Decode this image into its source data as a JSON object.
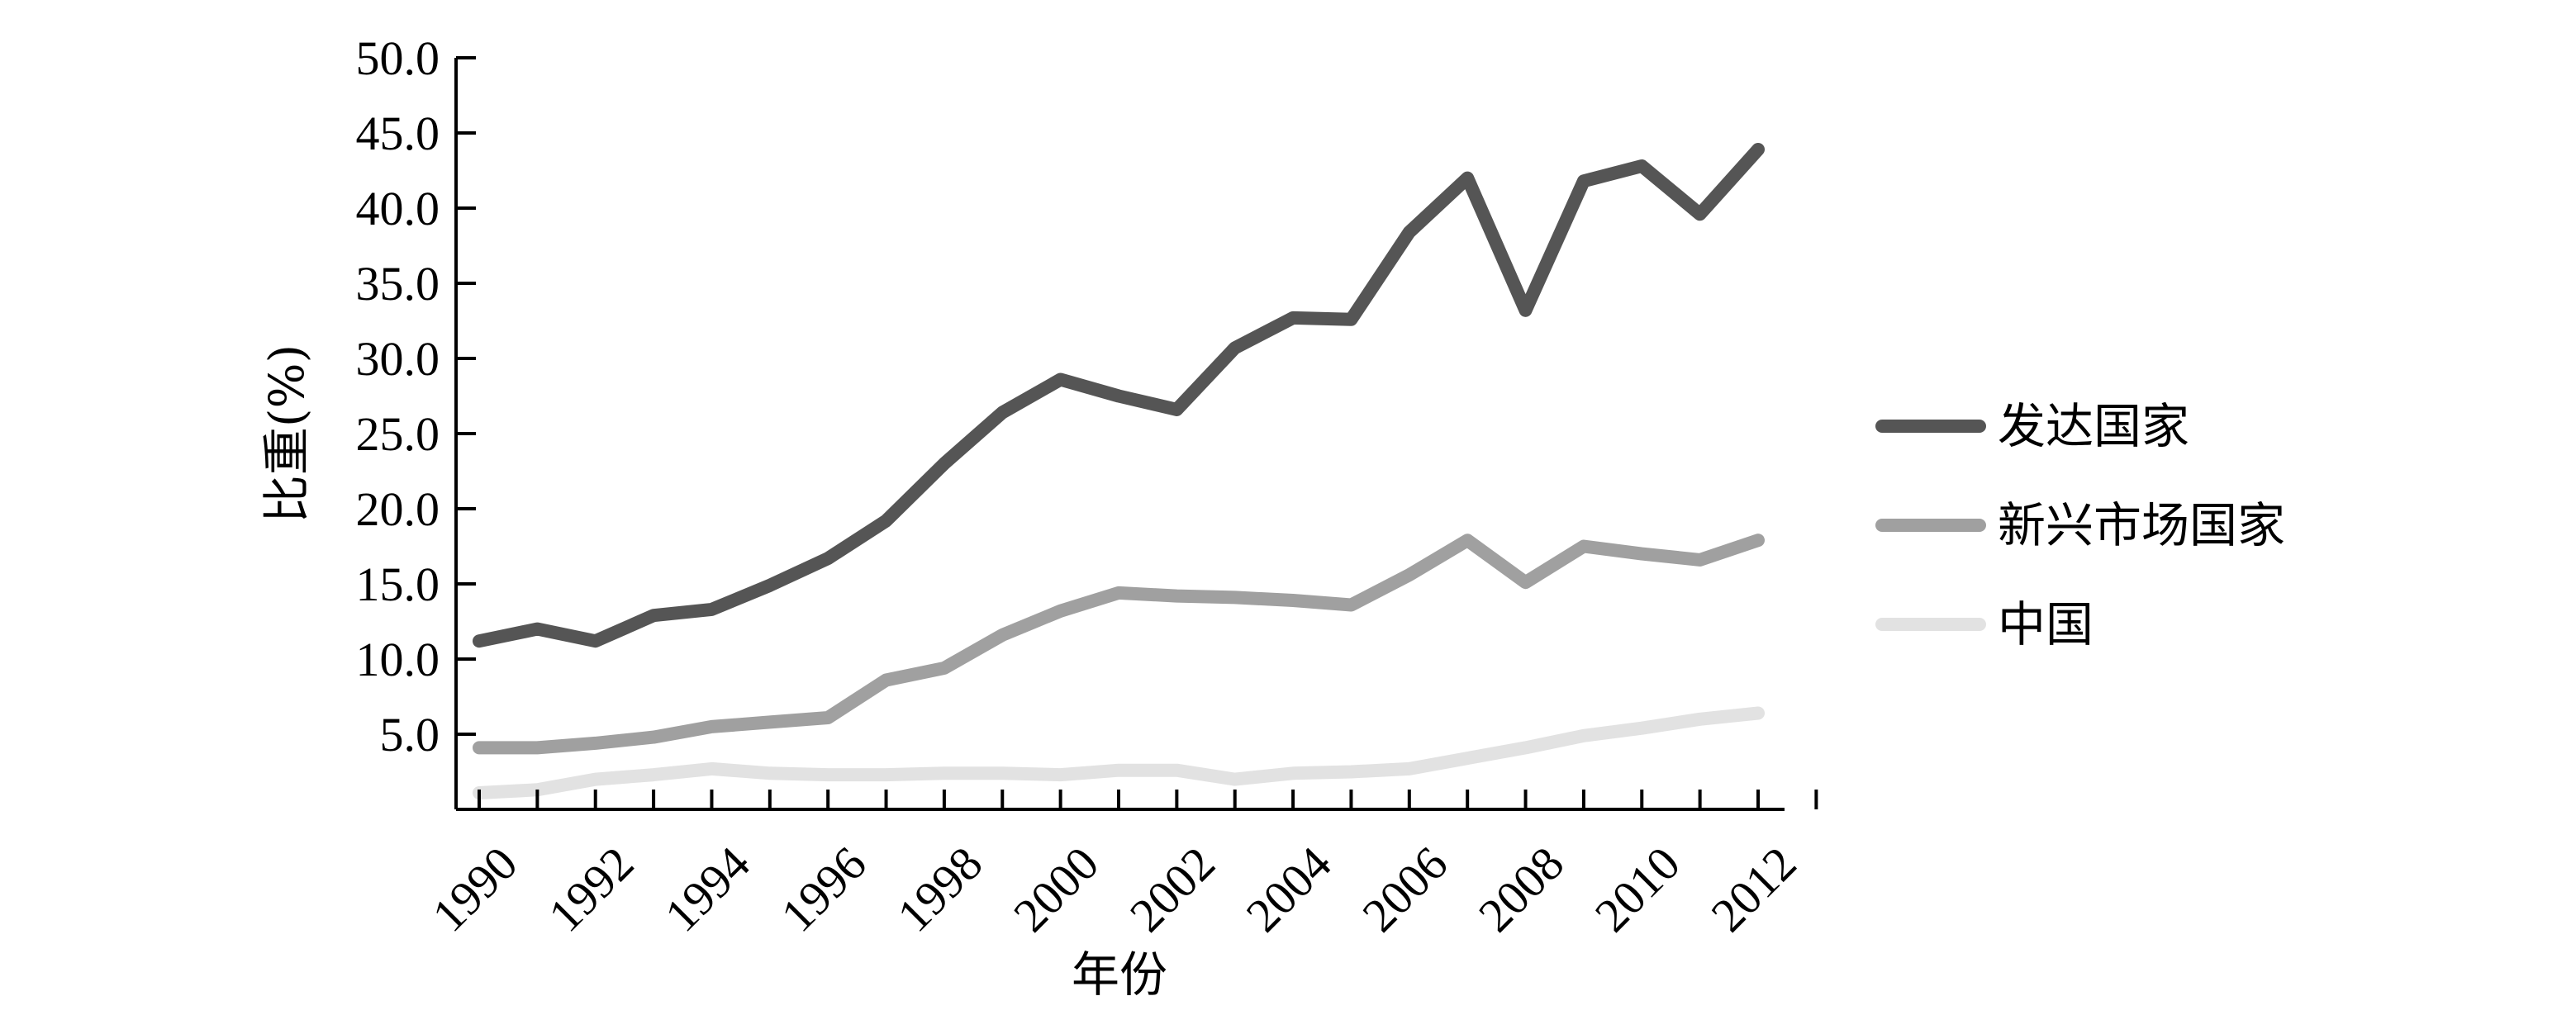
{
  "chart_data": {
    "type": "line",
    "title": "",
    "xlabel": "年份",
    "ylabel": "比重(%)",
    "xlim": [
      1990,
      2012
    ],
    "ylim": [
      0,
      50
    ],
    "y_ticks": [
      5,
      10,
      15,
      20,
      25,
      30,
      35,
      40,
      45,
      50
    ],
    "y_tick_labels": [
      "5.0",
      "10.0",
      "15.0",
      "20.0",
      "25.0",
      "30.0",
      "35.0",
      "40.0",
      "45.0",
      "50.0"
    ],
    "x_ticks": [
      1990,
      1992,
      1994,
      1996,
      1998,
      2000,
      2002,
      2004,
      2006,
      2008,
      2010,
      2012
    ],
    "x_tick_labels": [
      "1990",
      "1992",
      "1994",
      "1996",
      "1998",
      "2000",
      "2002",
      "2004",
      "2006",
      "2008",
      "2010",
      "2012"
    ],
    "grid": false,
    "legend_position": "right",
    "x": [
      1990,
      1991,
      1992,
      1993,
      1994,
      1995,
      1996,
      1997,
      1998,
      1999,
      2000,
      2001,
      2002,
      2003,
      2004,
      2005,
      2006,
      2007,
      2008,
      2009,
      2010,
      2011,
      2012
    ],
    "series": [
      {
        "name": "发达国家",
        "color": "#555555",
        "values": [
          11.2,
          12.0,
          11.2,
          12.9,
          13.3,
          14.9,
          16.7,
          19.2,
          23.0,
          26.4,
          28.6,
          27.5,
          26.6,
          30.7,
          32.7,
          32.6,
          38.4,
          42.0,
          33.2,
          41.8,
          42.8,
          39.6,
          43.9
        ]
      },
      {
        "name": "新兴市场国家",
        "color": "#a0a0a0",
        "values": [
          4.1,
          4.1,
          4.4,
          4.8,
          5.5,
          5.8,
          6.1,
          8.6,
          9.4,
          11.6,
          13.2,
          14.4,
          14.2,
          14.1,
          13.9,
          13.6,
          15.6,
          17.9,
          15.1,
          17.5,
          17.0,
          16.6,
          17.9
        ]
      },
      {
        "name": "中国",
        "color": "#e2e2e2",
        "values": [
          1.1,
          1.3,
          2.0,
          2.3,
          2.7,
          2.4,
          2.3,
          2.3,
          2.4,
          2.4,
          2.3,
          2.6,
          2.6,
          2.0,
          2.4,
          2.5,
          2.7,
          3.4,
          4.1,
          4.9,
          5.4,
          6.0,
          6.4
        ]
      }
    ]
  }
}
